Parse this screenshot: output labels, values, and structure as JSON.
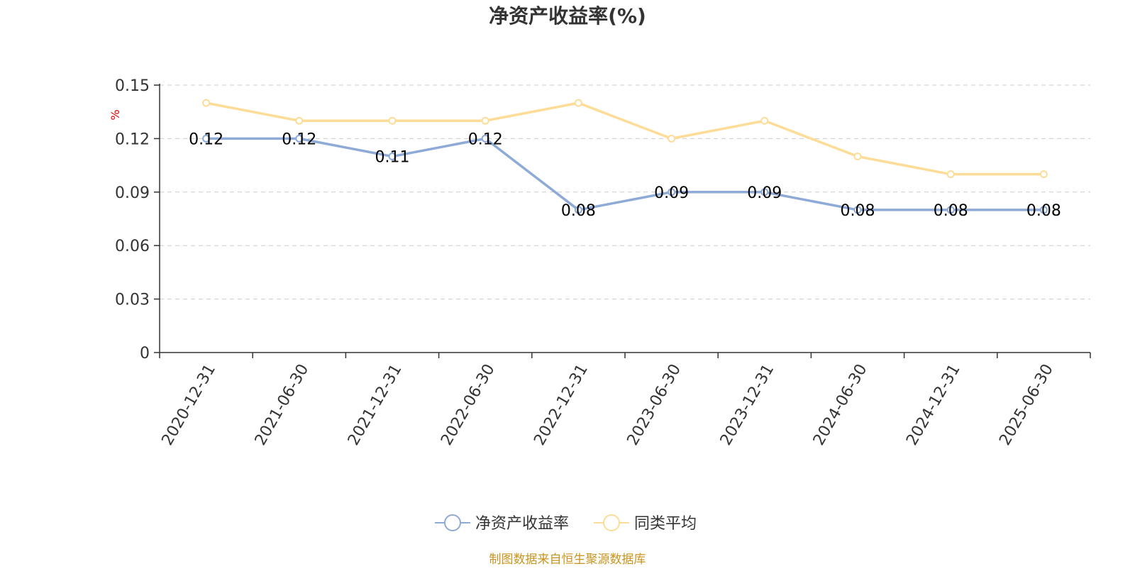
{
  "chart_data": {
    "type": "line",
    "title": "净资产收益率(%)",
    "ylabel": "%",
    "ylim": [
      0,
      0.15
    ],
    "yticks": [
      "0",
      "0.03",
      "0.06",
      "0.09",
      "0.12",
      "0.15"
    ],
    "ytick_values": [
      0,
      0.03,
      0.06,
      0.09,
      0.12,
      0.15
    ],
    "categories": [
      "2020-12-31",
      "2021-06-30",
      "2021-12-31",
      "2022-06-30",
      "2022-12-31",
      "2023-06-30",
      "2023-12-31",
      "2024-06-30",
      "2024-12-31",
      "2025-06-30"
    ],
    "grid": true,
    "legend_position": "bottom",
    "series": [
      {
        "name": "净资产收益率",
        "color": "#8eaad6",
        "values": [
          0.12,
          0.12,
          0.11,
          0.12,
          0.08,
          0.09,
          0.09,
          0.08,
          0.08,
          0.08
        ],
        "labels": [
          "0.12",
          "0.12",
          "0.11",
          "0.12",
          "0.08",
          "0.09",
          "0.09",
          "0.08",
          "0.08",
          "0.08"
        ]
      },
      {
        "name": "同类平均",
        "color": "#fddc97",
        "values": [
          0.14,
          0.13,
          0.13,
          0.13,
          0.14,
          0.12,
          0.13,
          0.11,
          0.1,
          0.1
        ]
      }
    ],
    "source": "制图数据来自恒生聚源数据库"
  }
}
